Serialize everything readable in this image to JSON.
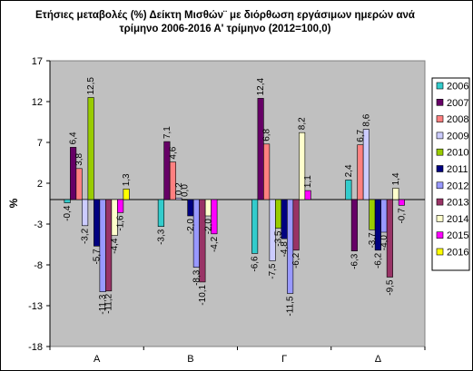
{
  "chart_data": {
    "type": "bar",
    "title": "Ετήσιες μεταβολές (%) Δείκτη Μισθών¨ με διόρθωση εργάσιμων ημερών ανά τρίμηνο 2006-2016 Α' τρίμηνο (2012=100,0)",
    "title_lines": [
      "Ετήσιες μεταβολές (%) Δείκτη Μισθών¨ με διόρθωση εργάσιμων ημερών ανά",
      "τρίμηνο 2006-2016 Α' τρίμηνο (2012=100,0)"
    ],
    "xlabel": "",
    "ylabel": "%",
    "ylim": [
      -18,
      17
    ],
    "yticks": [
      -18,
      -13,
      -8,
      -3,
      2,
      7,
      12,
      17
    ],
    "grid": false,
    "legend_position": "right",
    "categories": [
      "Α",
      "Β",
      "Γ",
      "Δ"
    ],
    "series": [
      {
        "name": "2006",
        "color": "#33CCCC",
        "values": [
          -0.4,
          -3.3,
          -6.6,
          2.4
        ],
        "labels": [
          "-0,4",
          "-3,3",
          "-6,6",
          "2,4"
        ]
      },
      {
        "name": "2007",
        "color": "#660066",
        "values": [
          6.4,
          7.1,
          12.4,
          -6.3
        ],
        "labels": [
          "6,4",
          "7,1",
          "12,4",
          "-6,3"
        ]
      },
      {
        "name": "2008",
        "color": "#FF8080",
        "values": [
          3.8,
          4.6,
          6.8,
          6.7
        ],
        "labels": [
          "3,8",
          "4,6",
          "6,8",
          "6,7"
        ]
      },
      {
        "name": "2009",
        "color": "#CCCCFF",
        "values": [
          -3.2,
          0.2,
          -7.5,
          8.6
        ],
        "labels": [
          "-3,2",
          "0,2",
          "-7,5",
          "8,6"
        ]
      },
      {
        "name": "2010",
        "color": "#99CC00",
        "values": [
          12.5,
          0.0,
          -3.5,
          -3.7
        ],
        "labels": [
          "12,5",
          "0,0",
          "-3,5",
          "-3,7"
        ]
      },
      {
        "name": "2011",
        "color": "#000080",
        "values": [
          -5.7,
          -2.0,
          -4.8,
          -6.2
        ],
        "labels": [
          "-5,7",
          "-2,0",
          "-4,8",
          "-6,2"
        ]
      },
      {
        "name": "2012",
        "color": "#9999FF",
        "values": [
          -11.3,
          -8.3,
          -11.5,
          -4.0
        ],
        "labels": [
          "-11,3",
          "-8,3",
          "-11,5",
          "-4,0"
        ]
      },
      {
        "name": "2013",
        "color": "#993366",
        "values": [
          -11.2,
          -10.1,
          -6.2,
          -9.5
        ],
        "labels": [
          "-11,2",
          "-10,1",
          "-6,2",
          "-9,5"
        ]
      },
      {
        "name": "2014",
        "color": "#FFFFCC",
        "values": [
          -4.4,
          -2.0,
          8.2,
          1.4
        ],
        "labels": [
          "-4,4",
          "-2,0",
          "8,2",
          "1,4"
        ]
      },
      {
        "name": "2015",
        "color": "#FF00FF",
        "values": [
          -1.6,
          -4.2,
          1.1,
          -0.7
        ],
        "labels": [
          "-1,6",
          "-4,2",
          "1,1",
          "-0,7"
        ]
      },
      {
        "name": "2016",
        "color": "#FFFF00",
        "values": [
          1.3,
          null,
          null,
          null
        ],
        "labels": [
          "1,3",
          "",
          "",
          ""
        ]
      }
    ],
    "plot_background": "#C0C0C0",
    "bar_outline": "#000000"
  }
}
